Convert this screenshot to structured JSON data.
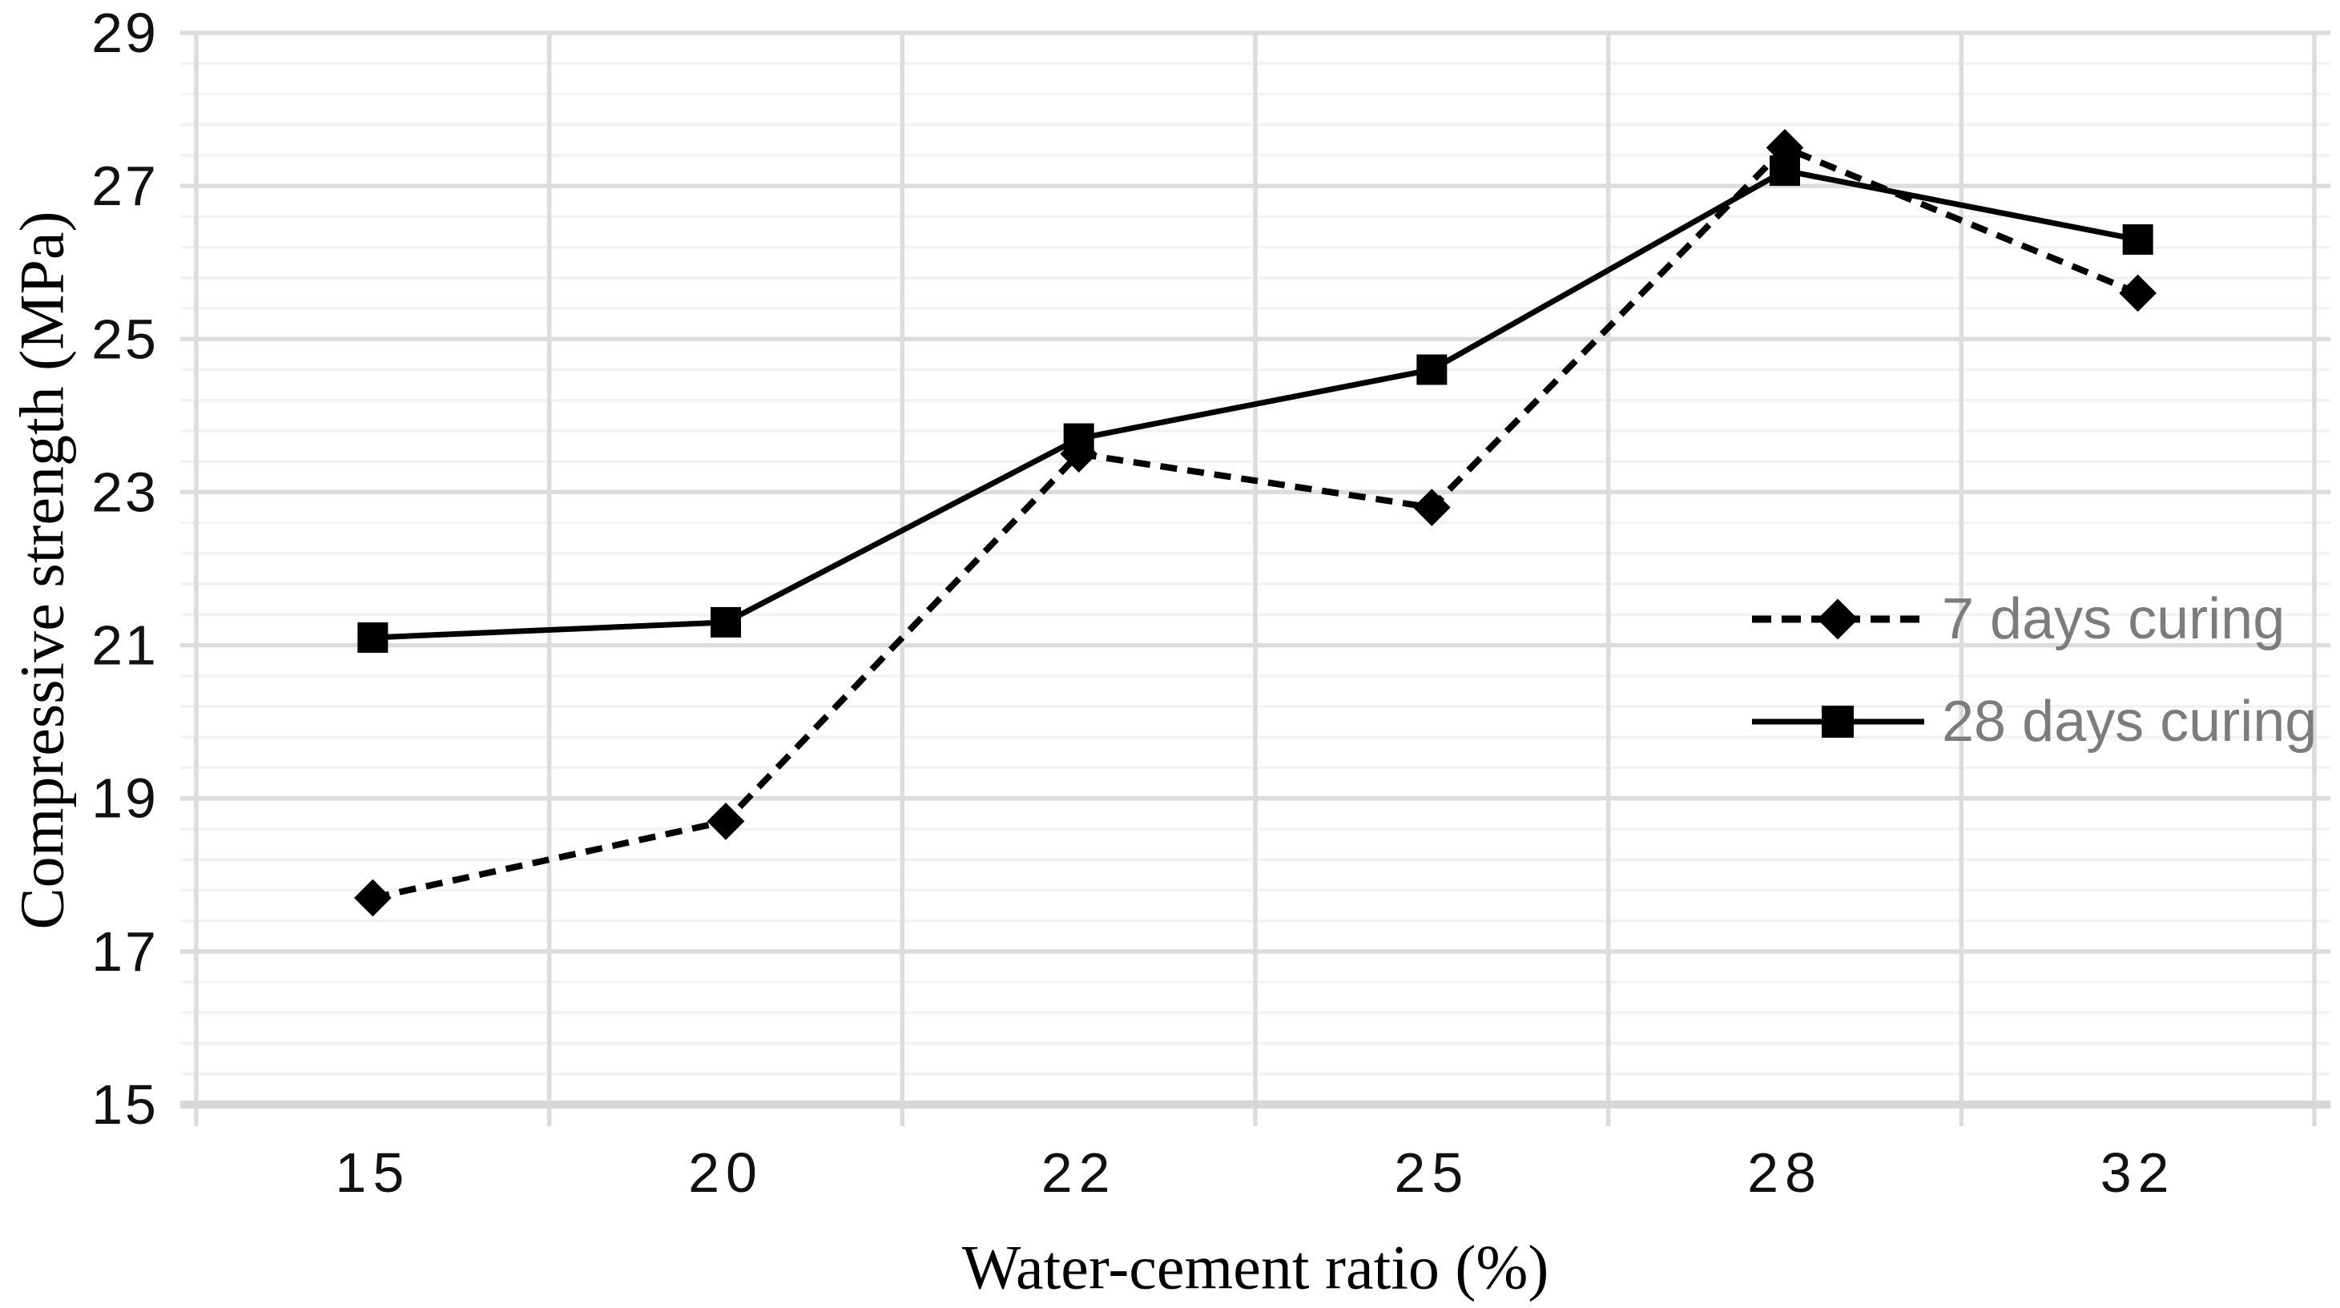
{
  "chart_data": {
    "type": "line",
    "title": "",
    "xlabel": "Water-cement ratio (%)",
    "ylabel": "Compressive strength (MPa)",
    "categories": [
      "15",
      "20",
      "22",
      "25",
      "28",
      "32"
    ],
    "y_tick_labels": [
      "15",
      "17",
      "19",
      "21",
      "23",
      "25",
      "27",
      "29"
    ],
    "ylim": [
      15,
      29
    ],
    "y_major_unit": 2,
    "y_minor_unit": 0.4,
    "grid": {
      "major_horizontal": true,
      "minor_horizontal": true,
      "vertical": true
    },
    "legend_position": "middle-right",
    "series": [
      {
        "name": "7 days curing",
        "marker": "diamond",
        "line_style": "dashed",
        "values": [
          17.7,
          18.7,
          23.5,
          22.8,
          27.5,
          25.6
        ]
      },
      {
        "name": "28 days curing",
        "marker": "square",
        "line_style": "solid",
        "values": [
          21.1,
          21.3,
          23.7,
          24.6,
          27.2,
          26.3
        ]
      }
    ]
  },
  "colors": {
    "series": "#000000",
    "grid_major": "#dcdcdc",
    "grid_minor": "#f2f2f2",
    "axis_line": "#d7d7d7",
    "tick_label": "#111111",
    "legend_text": "#7c7c7c",
    "background": "#ffffff"
  }
}
